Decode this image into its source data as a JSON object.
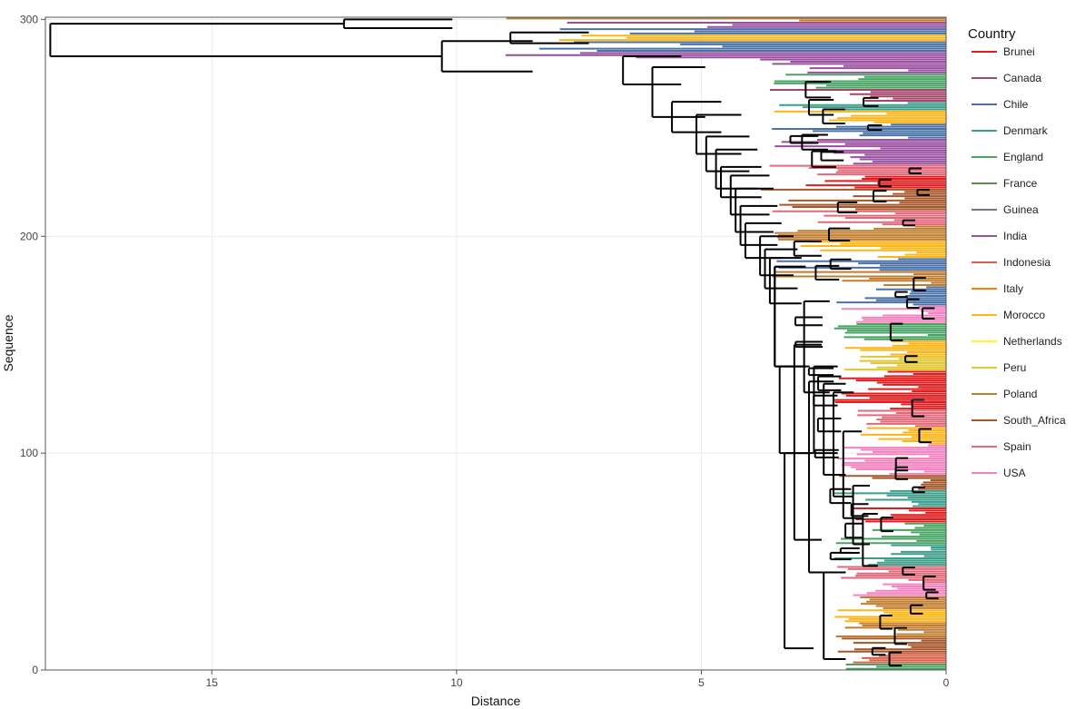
{
  "chart_data": {
    "type": "line",
    "subtype": "phylogenetic-tree",
    "title": "",
    "xlabel": "Distance",
    "ylabel": "Sequence",
    "xlim": [
      18.4,
      0
    ],
    "ylim": [
      0,
      301
    ],
    "xticks": [
      15,
      10,
      5,
      0
    ],
    "yticks": [
      0,
      100,
      200,
      300
    ],
    "grid": true,
    "legend": {
      "title": "Country",
      "placement": "right",
      "entries": [
        {
          "name": "Brunei",
          "color": "#E41A1C"
        },
        {
          "name": "Canada",
          "color": "#A6456A"
        },
        {
          "name": "Chile",
          "color": "#4A72A6"
        },
        {
          "name": "Denmark",
          "color": "#3A9E8A"
        },
        {
          "name": "England",
          "color": "#48A462"
        },
        {
          "name": "France",
          "color": "#5D8D4E"
        },
        {
          "name": "Guinea",
          "color": "#7E6E85"
        },
        {
          "name": "India",
          "color": "#9A4FA0"
        },
        {
          "name": "Indonesia",
          "color": "#D8614A"
        },
        {
          "name": "Italy",
          "color": "#FF7F00"
        },
        {
          "name": "Morocco",
          "color": "#FFB516"
        },
        {
          "name": "Netherlands",
          "color": "#FFF12C"
        },
        {
          "name": "Peru",
          "color": "#E1C62F"
        },
        {
          "name": "Poland",
          "color": "#C17E30"
        },
        {
          "name": "South_Africa",
          "color": "#A65628"
        },
        {
          "name": "Spain",
          "color": "#E1697A"
        },
        {
          "name": "USA",
          "color": "#F781BF"
        }
      ]
    },
    "leaf_color_blocks": [
      {
        "from": 299,
        "to": 301,
        "country": "Poland"
      },
      {
        "from": 296,
        "to": 299,
        "country": "India"
      },
      {
        "from": 293,
        "to": 296,
        "country": "Chile"
      },
      {
        "from": 290,
        "to": 293,
        "country": "Morocco"
      },
      {
        "from": 285,
        "to": 290,
        "country": "Chile"
      },
      {
        "from": 275,
        "to": 285,
        "country": "India"
      },
      {
        "from": 268,
        "to": 275,
        "country": "England"
      },
      {
        "from": 262,
        "to": 268,
        "country": "Canada"
      },
      {
        "from": 258,
        "to": 262,
        "country": "Denmark"
      },
      {
        "from": 252,
        "to": 258,
        "country": "Morocco"
      },
      {
        "from": 245,
        "to": 252,
        "country": "Chile"
      },
      {
        "from": 233,
        "to": 245,
        "country": "India"
      },
      {
        "from": 228,
        "to": 233,
        "country": "Spain"
      },
      {
        "from": 222,
        "to": 228,
        "country": "Brunei"
      },
      {
        "from": 212,
        "to": 222,
        "country": "South_Africa"
      },
      {
        "from": 205,
        "to": 212,
        "country": "Spain"
      },
      {
        "from": 198,
        "to": 205,
        "country": "Poland"
      },
      {
        "from": 190,
        "to": 198,
        "country": "Morocco"
      },
      {
        "from": 184,
        "to": 190,
        "country": "Chile"
      },
      {
        "from": 177,
        "to": 184,
        "country": "Poland"
      },
      {
        "from": 168,
        "to": 177,
        "country": "Chile"
      },
      {
        "from": 160,
        "to": 168,
        "country": "USA"
      },
      {
        "from": 152,
        "to": 160,
        "country": "England"
      },
      {
        "from": 145,
        "to": 152,
        "country": "Morocco"
      },
      {
        "from": 138,
        "to": 145,
        "country": "Peru"
      },
      {
        "from": 120,
        "to": 138,
        "country": "Brunei"
      },
      {
        "from": 112,
        "to": 120,
        "country": "Spain"
      },
      {
        "from": 104,
        "to": 112,
        "country": "Morocco"
      },
      {
        "from": 90,
        "to": 104,
        "country": "USA"
      },
      {
        "from": 83,
        "to": 90,
        "country": "South_Africa"
      },
      {
        "from": 75,
        "to": 83,
        "country": "Denmark"
      },
      {
        "from": 68,
        "to": 75,
        "country": "Brunei"
      },
      {
        "from": 58,
        "to": 68,
        "country": "England"
      },
      {
        "from": 48,
        "to": 58,
        "country": "Denmark"
      },
      {
        "from": 40,
        "to": 48,
        "country": "Spain"
      },
      {
        "from": 34,
        "to": 40,
        "country": "USA"
      },
      {
        "from": 28,
        "to": 34,
        "country": "Poland"
      },
      {
        "from": 22,
        "to": 28,
        "country": "Morocco"
      },
      {
        "from": 15,
        "to": 22,
        "country": "Poland"
      },
      {
        "from": 8,
        "to": 15,
        "country": "South_Africa"
      },
      {
        "from": 3,
        "to": 8,
        "country": "Indonesia"
      },
      {
        "from": 0,
        "to": 3,
        "country": "England"
      }
    ],
    "backbone": {
      "root": {
        "x": 18.3,
        "y_low": 283,
        "y_high": 298
      },
      "upper_clade": [
        {
          "x": 12.3,
          "y_low": 296,
          "y_high": 300
        },
        {
          "x": 10.3,
          "y_low": 276,
          "y_high": 290
        },
        {
          "x": 8.9,
          "y_low": 289,
          "y_high": 294
        },
        {
          "x": 6.6,
          "y_low": 270,
          "y_high": 283
        },
        {
          "x": 6.0,
          "y_low": 255,
          "y_high": 278
        },
        {
          "x": 5.6,
          "y_low": 248,
          "y_high": 262
        },
        {
          "x": 5.1,
          "y_low": 238,
          "y_high": 256
        },
        {
          "x": 4.9,
          "y_low": 230,
          "y_high": 246
        },
        {
          "x": 4.7,
          "y_low": 222,
          "y_high": 240
        },
        {
          "x": 4.6,
          "y_low": 218,
          "y_high": 232
        },
        {
          "x": 4.4,
          "y_low": 210,
          "y_high": 228
        },
        {
          "x": 4.3,
          "y_low": 202,
          "y_high": 222
        },
        {
          "x": 4.2,
          "y_low": 196,
          "y_high": 214
        },
        {
          "x": 4.1,
          "y_low": 190,
          "y_high": 206
        },
        {
          "x": 3.8,
          "y_low": 182,
          "y_high": 200
        },
        {
          "x": 3.7,
          "y_low": 176,
          "y_high": 194
        },
        {
          "x": 3.6,
          "y_low": 169,
          "y_high": 190
        },
        {
          "x": 3.5,
          "y_low": 140,
          "y_high": 186
        }
      ],
      "lower_clade": [
        {
          "x": 3.5,
          "y_low": 140,
          "y_high": 186
        },
        {
          "x": 3.4,
          "y_low": 100,
          "y_high": 140
        },
        {
          "x": 3.3,
          "y_low": 10,
          "y_high": 100
        },
        {
          "x": 3.1,
          "y_low": 60,
          "y_high": 150
        },
        {
          "x": 2.9,
          "y_low": 128,
          "y_high": 170
        },
        {
          "x": 2.8,
          "y_low": 45,
          "y_high": 133
        },
        {
          "x": 2.5,
          "y_low": 5,
          "y_high": 45
        },
        {
          "x": 2.7,
          "y_low": 100,
          "y_high": 140
        },
        {
          "x": 2.5,
          "y_low": 90,
          "y_high": 132
        },
        {
          "x": 2.3,
          "y_low": 80,
          "y_high": 128
        },
        {
          "x": 2.1,
          "y_low": 70,
          "y_high": 110
        },
        {
          "x": 1.9,
          "y_low": 58,
          "y_high": 85
        },
        {
          "x": 1.7,
          "y_low": 48,
          "y_high": 72
        }
      ]
    }
  }
}
